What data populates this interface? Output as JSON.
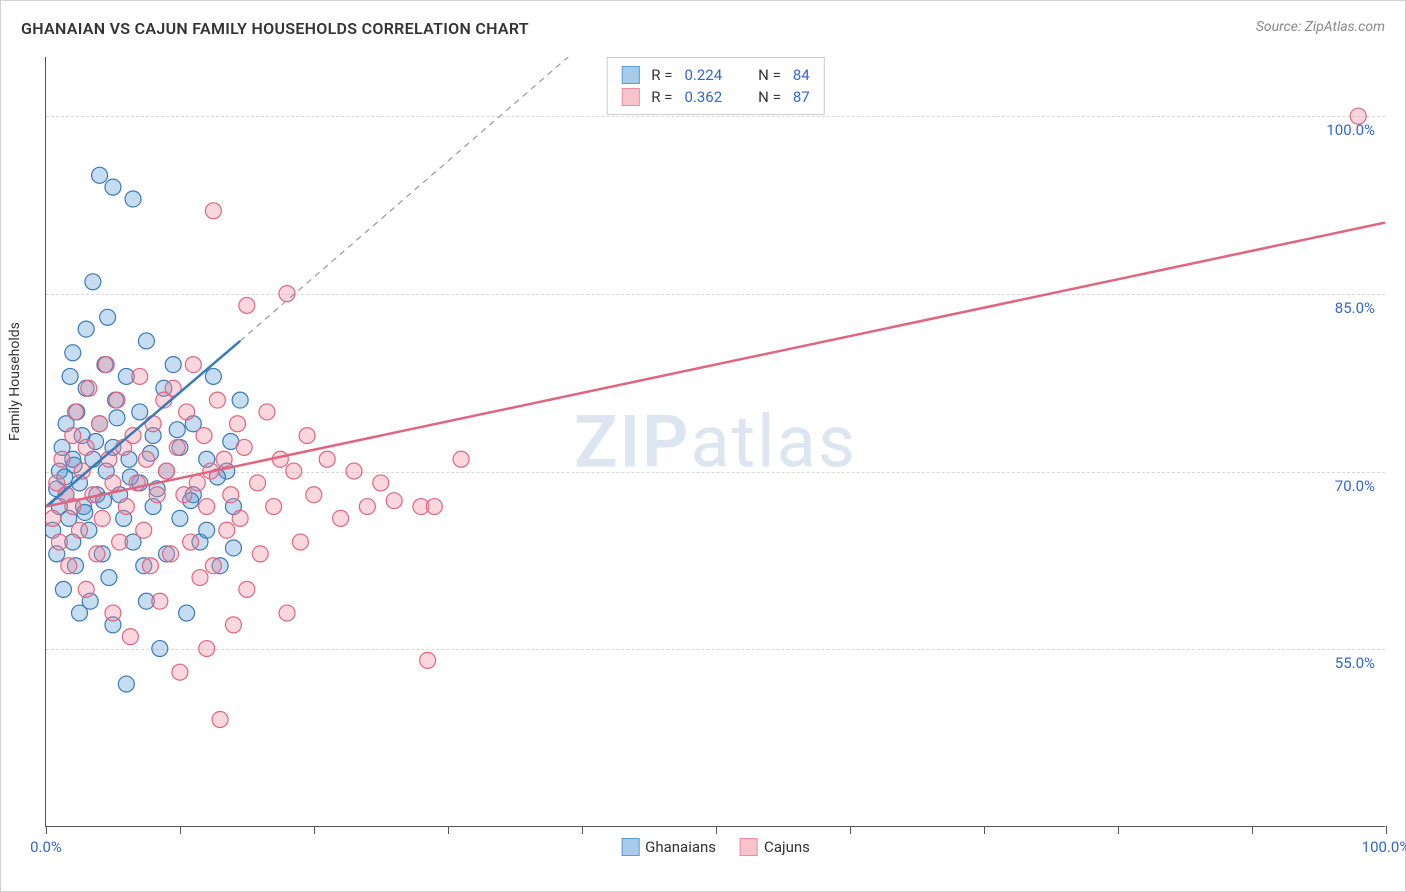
{
  "title": "GHANAIAN VS CAJUN FAMILY HOUSEHOLDS CORRELATION CHART",
  "source": "Source: ZipAtlas.com",
  "watermark_a": "ZIP",
  "watermark_b": "atlas",
  "ylabel": "Family Households",
  "chart": {
    "type": "scatter",
    "background_color": "#ffffff",
    "grid_color": "#d8d8d8",
    "axis_color": "#555555",
    "x_range": [
      0,
      100
    ],
    "y_range": [
      40,
      105
    ],
    "y_ticks": [
      55.0,
      70.0,
      85.0,
      100.0
    ],
    "y_tick_labels": [
      "55.0%",
      "70.0%",
      "85.0%",
      "100.0%"
    ],
    "x_ticks": [
      0,
      10,
      20,
      30,
      40,
      50,
      60,
      70,
      80,
      90,
      100
    ],
    "x_tick_labels": {
      "0": "0.0%",
      "100": "100.0%"
    },
    "marker_radius": 8,
    "marker_fill_opacity": 0.35,
    "marker_stroke_width": 1.2,
    "series": [
      {
        "name": "Ghanaians",
        "color": "#5b9bd5",
        "stroke": "#3a7ab8",
        "R": "0.224",
        "N": "84",
        "trend": {
          "x1": 0,
          "y1": 67,
          "x2": 14.5,
          "y2": 81,
          "width": 2.5
        },
        "trend_dash": {
          "x1": 14.5,
          "y1": 81,
          "x2": 39,
          "y2": 105
        },
        "points": [
          [
            0.5,
            65
          ],
          [
            0.8,
            63
          ],
          [
            1,
            67
          ],
          [
            1,
            70
          ],
          [
            1.2,
            72
          ],
          [
            1.3,
            60
          ],
          [
            1.5,
            74
          ],
          [
            1.5,
            68
          ],
          [
            1.7,
            66
          ],
          [
            1.8,
            78
          ],
          [
            2,
            71
          ],
          [
            2,
            64
          ],
          [
            2,
            80
          ],
          [
            2.2,
            62
          ],
          [
            2.3,
            75
          ],
          [
            2.5,
            58
          ],
          [
            2.5,
            69
          ],
          [
            2.7,
            73
          ],
          [
            2.8,
            67
          ],
          [
            3,
            77
          ],
          [
            3,
            82
          ],
          [
            3.2,
            65
          ],
          [
            3.3,
            59
          ],
          [
            3.5,
            71
          ],
          [
            3.5,
            86
          ],
          [
            3.8,
            68
          ],
          [
            4,
            95
          ],
          [
            4,
            74
          ],
          [
            4.2,
            63
          ],
          [
            4.4,
            79
          ],
          [
            4.5,
            70
          ],
          [
            4.6,
            83
          ],
          [
            4.7,
            61
          ],
          [
            5,
            72
          ],
          [
            5,
            57
          ],
          [
            5,
            94
          ],
          [
            5.2,
            76
          ],
          [
            5.5,
            68
          ],
          [
            5.8,
            66
          ],
          [
            6,
            78
          ],
          [
            6,
            52
          ],
          [
            6.2,
            71
          ],
          [
            6.5,
            93
          ],
          [
            6.5,
            64
          ],
          [
            7,
            75
          ],
          [
            7,
            69
          ],
          [
            7.3,
            62
          ],
          [
            7.5,
            81
          ],
          [
            7.5,
            59
          ],
          [
            8,
            73
          ],
          [
            8,
            67
          ],
          [
            8.5,
            55
          ],
          [
            8.8,
            77
          ],
          [
            9,
            70
          ],
          [
            9,
            63
          ],
          [
            9.5,
            79
          ],
          [
            10,
            66
          ],
          [
            10,
            72
          ],
          [
            10.5,
            58
          ],
          [
            11,
            74
          ],
          [
            11,
            68
          ],
          [
            11.5,
            64
          ],
          [
            12,
            71
          ],
          [
            12,
            65
          ],
          [
            12.5,
            78
          ],
          [
            13,
            62
          ],
          [
            13.5,
            70
          ],
          [
            14,
            67
          ],
          [
            14,
            63.5
          ],
          [
            14.5,
            76
          ],
          [
            0.8,
            68.5
          ],
          [
            1.4,
            69.5
          ],
          [
            2.1,
            70.5
          ],
          [
            2.9,
            66.5
          ],
          [
            3.7,
            72.5
          ],
          [
            4.3,
            67.5
          ],
          [
            5.3,
            74.5
          ],
          [
            6.3,
            69.5
          ],
          [
            7.8,
            71.5
          ],
          [
            8.3,
            68.5
          ],
          [
            9.8,
            73.5
          ],
          [
            10.8,
            67.5
          ],
          [
            12.8,
            69.5
          ],
          [
            13.8,
            72.5
          ]
        ]
      },
      {
        "name": "Cajuns",
        "color": "#f08ca0",
        "stroke": "#e06680",
        "R": "0.362",
        "N": "87",
        "trend": {
          "x1": 0,
          "y1": 67,
          "x2": 100,
          "y2": 91,
          "width": 2.5
        },
        "points": [
          [
            0.5,
            66
          ],
          [
            0.8,
            69
          ],
          [
            1,
            64
          ],
          [
            1.2,
            71
          ],
          [
            1.5,
            68
          ],
          [
            1.7,
            62
          ],
          [
            2,
            73
          ],
          [
            2,
            67
          ],
          [
            2.2,
            75
          ],
          [
            2.5,
            65
          ],
          [
            2.7,
            70
          ],
          [
            3,
            60
          ],
          [
            3,
            72
          ],
          [
            3.2,
            77
          ],
          [
            3.5,
            68
          ],
          [
            3.8,
            63
          ],
          [
            4,
            74
          ],
          [
            4.2,
            66
          ],
          [
            4.5,
            79
          ],
          [
            4.7,
            71
          ],
          [
            5,
            58
          ],
          [
            5,
            69
          ],
          [
            5.3,
            76
          ],
          [
            5.5,
            64
          ],
          [
            5.8,
            72
          ],
          [
            6,
            67
          ],
          [
            6.3,
            56
          ],
          [
            6.5,
            73
          ],
          [
            6.8,
            69
          ],
          [
            7,
            78
          ],
          [
            7.3,
            65
          ],
          [
            7.5,
            71
          ],
          [
            7.8,
            62
          ],
          [
            8,
            74
          ],
          [
            8.3,
            68
          ],
          [
            8.5,
            59
          ],
          [
            8.8,
            76
          ],
          [
            9,
            70
          ],
          [
            9.3,
            63
          ],
          [
            9.5,
            77
          ],
          [
            9.8,
            72
          ],
          [
            10,
            53
          ],
          [
            10.3,
            68
          ],
          [
            10.5,
            75
          ],
          [
            10.8,
            64
          ],
          [
            11,
            79
          ],
          [
            11.3,
            69
          ],
          [
            11.5,
            61
          ],
          [
            11.8,
            73
          ],
          [
            12,
            55
          ],
          [
            12,
            67
          ],
          [
            12.3,
            70
          ],
          [
            12.5,
            62
          ],
          [
            12.8,
            76
          ],
          [
            13,
            49
          ],
          [
            13.3,
            71
          ],
          [
            13.5,
            65
          ],
          [
            13.8,
            68
          ],
          [
            14,
            57
          ],
          [
            14.3,
            74
          ],
          [
            14.5,
            66
          ],
          [
            14.8,
            72
          ],
          [
            15,
            60
          ],
          [
            15,
            84
          ],
          [
            15.8,
            69
          ],
          [
            16,
            63
          ],
          [
            16.5,
            75
          ],
          [
            17,
            67
          ],
          [
            17.5,
            71
          ],
          [
            18,
            58
          ],
          [
            18,
            85
          ],
          [
            18.5,
            70
          ],
          [
            19,
            64
          ],
          [
            19.5,
            73
          ],
          [
            20,
            68
          ],
          [
            21,
            71
          ],
          [
            22,
            66
          ],
          [
            23,
            70
          ],
          [
            24,
            67
          ],
          [
            25,
            69
          ],
          [
            26,
            67.5
          ],
          [
            28,
            67
          ],
          [
            28.5,
            54
          ],
          [
            29,
            67
          ],
          [
            31,
            71
          ],
          [
            98,
            100
          ],
          [
            12.5,
            92
          ]
        ]
      }
    ]
  },
  "legend_bottom": [
    {
      "label": "Ghanaians",
      "fill": "#a8cbea",
      "stroke": "#5b9bd5"
    },
    {
      "label": "Cajuns",
      "fill": "#f7c4ce",
      "stroke": "#f08ca0"
    }
  ],
  "legend_top_labels": {
    "R": "R =",
    "N": "N ="
  }
}
